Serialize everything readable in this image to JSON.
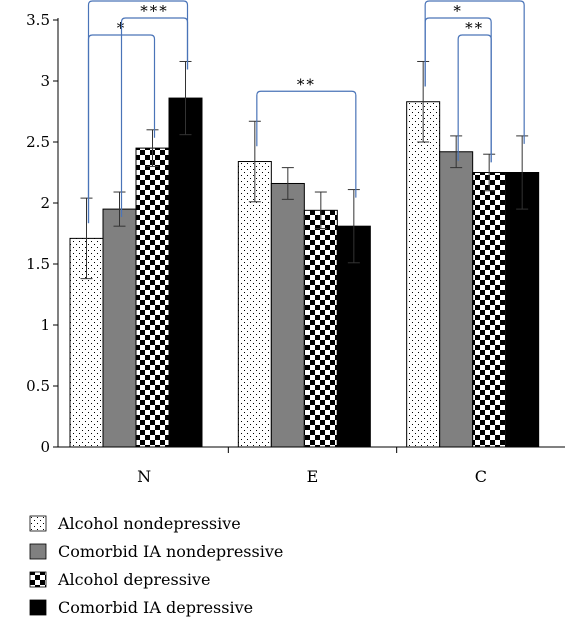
{
  "chart_data": {
    "type": "bar",
    "categories": [
      "N",
      "E",
      "C"
    ],
    "ylim": [
      0,
      3.5
    ],
    "yticks": [
      "0",
      "0.5",
      "1",
      "1.5",
      "2",
      "2.5",
      "3",
      "3.5"
    ],
    "grid": false,
    "legend_position": "bottom-left",
    "series": [
      {
        "name": "Alcohol nondepressive",
        "pattern": "dots",
        "values": [
          1.71,
          2.34,
          2.83
        ],
        "errors": [
          0.33,
          0.33,
          0.33
        ]
      },
      {
        "name": "Comorbid IA nondepressive",
        "pattern": "gray",
        "values": [
          1.95,
          2.16,
          2.42
        ],
        "errors": [
          0.14,
          0.13,
          0.13
        ]
      },
      {
        "name": "Alcohol depressive",
        "pattern": "checker",
        "values": [
          2.45,
          1.94,
          2.25
        ],
        "errors": [
          0.15,
          0.15,
          0.15
        ]
      },
      {
        "name": "Comorbid IA depressive",
        "pattern": "black",
        "values": [
          2.86,
          1.81,
          2.25
        ],
        "errors": [
          0.3,
          0.3,
          0.3
        ]
      }
    ],
    "significance": [
      {
        "category": 0,
        "from": 0,
        "to": 2,
        "label": "*"
      },
      {
        "category": 0,
        "from": 0,
        "to": 3,
        "label": "***"
      },
      {
        "category": 0,
        "from": 1,
        "to": 3,
        "label": "***"
      },
      {
        "category": 1,
        "from": 0,
        "to": 3,
        "label": "**"
      },
      {
        "category": 2,
        "from": 1,
        "to": 2,
        "label": "**"
      },
      {
        "category": 2,
        "from": 0,
        "to": 2,
        "label": "*"
      },
      {
        "category": 2,
        "from": 0,
        "to": 3,
        "label": "***"
      }
    ],
    "colors": {
      "bracket": "#4a74b8",
      "gray": "#808080",
      "black": "#000000"
    }
  }
}
